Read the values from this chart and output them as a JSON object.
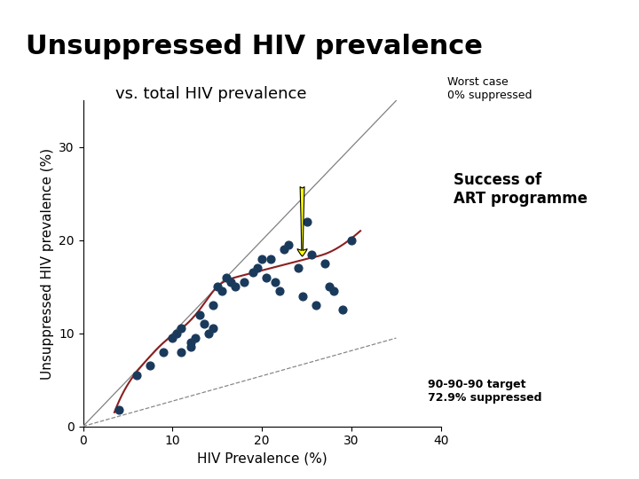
{
  "title": "Unsuppressed HIV prevalence",
  "subtitle": "vs. total HIV prevalence",
  "xlabel": "HIV Prevalence (%)",
  "ylabel": "Unsuppressed HIV prevalence (%)",
  "xlim": [
    0,
    40
  ],
  "ylim": [
    0,
    35
  ],
  "xticks": [
    0,
    10,
    20,
    30,
    40
  ],
  "yticks": [
    0,
    10,
    20,
    30
  ],
  "background_color": "#ffffff",
  "fig_background": "#ffffff",
  "top_bar_color": "#1a1a1a",
  "scatter_color": "#1a3a5c",
  "scatter_x": [
    4.0,
    6.0,
    7.5,
    9.0,
    10.0,
    10.5,
    11.0,
    11.0,
    12.0,
    12.0,
    12.5,
    13.0,
    13.5,
    14.0,
    14.5,
    14.5,
    15.0,
    15.5,
    16.0,
    16.5,
    17.0,
    18.0,
    19.0,
    19.5,
    20.0,
    20.5,
    21.0,
    21.5,
    22.0,
    22.5,
    23.0,
    24.0,
    24.5,
    25.0,
    25.5,
    26.0,
    27.0,
    27.5,
    28.0,
    29.0,
    30.0
  ],
  "scatter_y": [
    1.8,
    5.5,
    6.5,
    8.0,
    9.5,
    10.0,
    10.5,
    8.0,
    9.0,
    8.5,
    9.5,
    12.0,
    11.0,
    10.0,
    13.0,
    10.5,
    15.0,
    14.5,
    16.0,
    15.5,
    15.0,
    15.5,
    16.5,
    17.0,
    18.0,
    16.0,
    18.0,
    15.5,
    14.5,
    19.0,
    19.5,
    17.0,
    14.0,
    22.0,
    18.5,
    13.0,
    17.5,
    15.0,
    14.5,
    12.5,
    20.0
  ],
  "worst_case_line_color": "#808080",
  "dashed_line_color": "#888888",
  "smooth_line_color": "#8b2020",
  "smooth_x": [
    3.5,
    5.0,
    7.0,
    9.0,
    11.0,
    13.0,
    15.0,
    17.0,
    19.0,
    21.0,
    23.0,
    25.0,
    27.0,
    29.0,
    31.0
  ],
  "smooth_y": [
    1.5,
    4.5,
    7.0,
    9.0,
    10.5,
    12.5,
    15.0,
    16.0,
    16.5,
    17.0,
    17.5,
    18.0,
    18.5,
    19.5,
    21.0
  ],
  "worst_case_label": "Worst case\n0% suppressed",
  "target_label": "90-90-90 target\n72.9% suppressed",
  "arrow_color": "#ffff00",
  "arrow_edge_color": "#000000",
  "success_text": "Success of\nART programme",
  "title_fontsize": 22,
  "subtitle_fontsize": 13,
  "axis_label_fontsize": 11,
  "tick_fontsize": 10,
  "annotation_fontsize": 9
}
